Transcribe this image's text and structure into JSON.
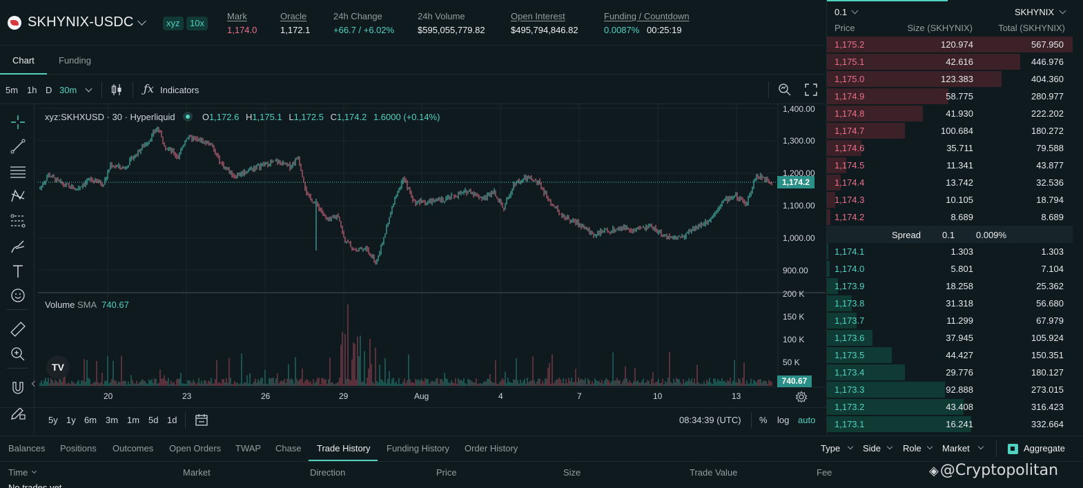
{
  "header": {
    "pair": "SKHYNIX-USDC",
    "badges": [
      "xyz",
      "10x"
    ],
    "stats": [
      {
        "label": "Mark",
        "value": "1,174.0"
      },
      {
        "label": "Oracle",
        "value": "1,172.1"
      },
      {
        "label": "24h Change",
        "value": "+66.7 / +6.02%"
      },
      {
        "label": "24h Volume",
        "value": "$595,055,779.82"
      },
      {
        "label": "Open Interest",
        "value": "$495,794,846.82"
      },
      {
        "label": "Funding / Countdown",
        "value": "0.0087%",
        "countdown": "00:25:19"
      }
    ]
  },
  "chart_tabs": [
    "Chart",
    "Funding"
  ],
  "toolbar": {
    "timeframes": [
      "5m",
      "1h",
      "D",
      "30m"
    ],
    "indicators": "Indicators"
  },
  "legend": {
    "symbol": "xyz:SKHXUSD · 30 · Hyperliquid",
    "o_label": "O",
    "o": "1,172.6",
    "h_label": "H",
    "h": "1,175.1",
    "l_label": "L",
    "l": "1,172.5",
    "c_label": "C",
    "c": "1,174.2",
    "change": "1.6000 (+0.14%)"
  },
  "price_axis": [
    "1,400.00",
    "1,300.00",
    "1,200.00",
    "1,100.00",
    "1,000.00",
    "900.00"
  ],
  "last_price_tag": "1,174.2",
  "volume": {
    "label": "Volume",
    "sma_label": "SMA",
    "sma": "740.67",
    "axis": [
      "200 K",
      "150 K",
      "100 K",
      "50 K"
    ],
    "tag": "740.67"
  },
  "time_axis": [
    "20",
    "23",
    "26",
    "29",
    "Aug",
    "4",
    "7",
    "10",
    "13"
  ],
  "range_buttons": [
    "5y",
    "1y",
    "6m",
    "3m",
    "1m",
    "5d",
    "1d"
  ],
  "footer": {
    "time": "08:34:39 (UTC)",
    "pct": "%",
    "log": "log",
    "auto": "auto"
  },
  "orderbook": {
    "tick": "0.1",
    "asset": "SKHYNIX",
    "headers": [
      "Price",
      "Size (SKHYNIX)",
      "Total (SKHYNIX)"
    ],
    "asks": [
      {
        "price": "1,175.2",
        "size": "120.974",
        "total": "567.950"
      },
      {
        "price": "1,175.1",
        "size": "42.616",
        "total": "446.976"
      },
      {
        "price": "1,175.0",
        "size": "123.383",
        "total": "404.360"
      },
      {
        "price": "1,174.9",
        "size": "58.775",
        "total": "280.977"
      },
      {
        "price": "1,174.8",
        "size": "41.930",
        "total": "222.202"
      },
      {
        "price": "1,174.7",
        "size": "100.684",
        "total": "180.272"
      },
      {
        "price": "1,174.6",
        "size": "35.711",
        "total": "79.588"
      },
      {
        "price": "1,174.5",
        "size": "11.341",
        "total": "43.877"
      },
      {
        "price": "1,174.4",
        "size": "13.742",
        "total": "32.536"
      },
      {
        "price": "1,174.3",
        "size": "10.105",
        "total": "18.794"
      },
      {
        "price": "1,174.2",
        "size": "8.689",
        "total": "8.689"
      }
    ],
    "spread": {
      "label": "Spread",
      "value": "0.1",
      "pct": "0.009%"
    },
    "bids": [
      {
        "price": "1,174.1",
        "size": "1.303",
        "total": "1.303"
      },
      {
        "price": "1,174.0",
        "size": "5.801",
        "total": "7.104"
      },
      {
        "price": "1,173.9",
        "size": "18.258",
        "total": "25.362"
      },
      {
        "price": "1,173.8",
        "size": "31.318",
        "total": "56.680"
      },
      {
        "price": "1,173.7",
        "size": "11.299",
        "total": "67.979"
      },
      {
        "price": "1,173.6",
        "size": "37.945",
        "total": "105.924"
      },
      {
        "price": "1,173.5",
        "size": "44.427",
        "total": "150.351"
      },
      {
        "price": "1,173.4",
        "size": "29.776",
        "total": "180.127"
      },
      {
        "price": "1,173.3",
        "size": "92.888",
        "total": "273.015"
      },
      {
        "price": "1,173.2",
        "size": "43.408",
        "total": "316.423"
      },
      {
        "price": "1,173.1",
        "size": "16.241",
        "total": "332.664"
      }
    ]
  },
  "bottom_tabs": [
    "Balances",
    "Positions",
    "Outcomes",
    "Open Orders",
    "TWAP",
    "Chase",
    "Trade History",
    "Funding History",
    "Order History"
  ],
  "filters": [
    "Type",
    "Side",
    "Role",
    "Market"
  ],
  "aggregate": "Aggregate",
  "table_headers": [
    "Time",
    "Market",
    "Direction",
    "Price",
    "Size",
    "Trade Value",
    "Fee"
  ],
  "empty_text": "No trades yet",
  "watermark": "@Cryptopolitan",
  "colors": {
    "green": "#50d2c1",
    "red": "#ed7088",
    "bg": "#0f1a1f",
    "accent_green_bar": "#0f3b34",
    "accent_red_bar": "#3c2129"
  }
}
